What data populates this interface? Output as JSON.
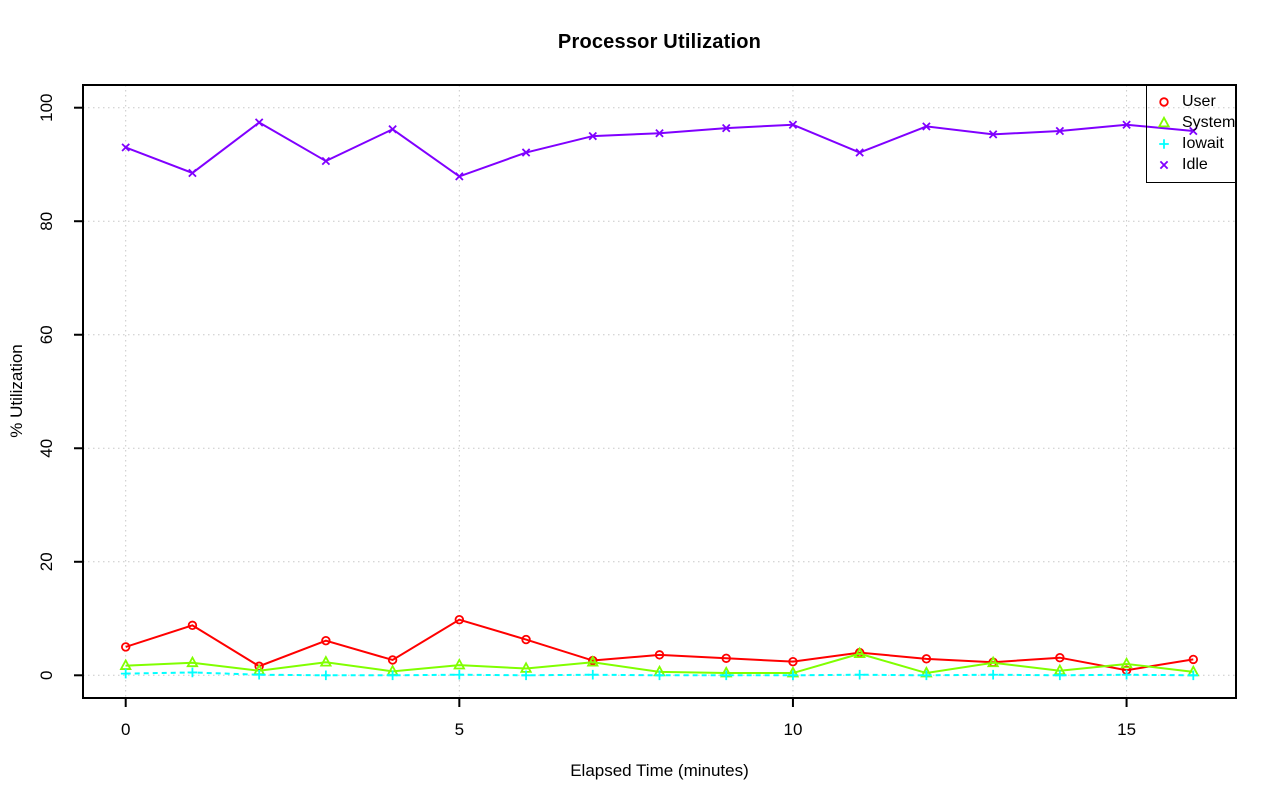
{
  "chart_data": {
    "type": "line",
    "title": "Processor Utilization",
    "xlabel": "Elapsed Time (minutes)",
    "ylabel": "% Utilization",
    "x": [
      0,
      1,
      2,
      3,
      4,
      5,
      6,
      7,
      8,
      9,
      10,
      11,
      12,
      13,
      14,
      15,
      16
    ],
    "xticks": [
      0,
      5,
      10,
      15
    ],
    "yticks": [
      0,
      20,
      40,
      60,
      80,
      100
    ],
    "xlim": [
      0,
      16
    ],
    "ylim": [
      0,
      100
    ],
    "grid": true,
    "grid_style": "dotted",
    "legend_position": "top-right",
    "series": [
      {
        "name": "User",
        "color": "#FF0000",
        "marker": "open-circle",
        "line": "solid",
        "values": [
          5.0,
          8.8,
          1.6,
          6.1,
          2.7,
          9.8,
          6.3,
          2.6,
          3.6,
          3.0,
          2.4,
          4.0,
          2.9,
          2.3,
          3.1,
          0.9,
          2.8
        ]
      },
      {
        "name": "System",
        "color": "#80FF00",
        "marker": "open-triangle",
        "line": "solid",
        "values": [
          1.7,
          2.2,
          0.8,
          2.3,
          0.7,
          1.8,
          1.2,
          2.3,
          0.6,
          0.4,
          0.4,
          3.8,
          0.4,
          2.2,
          0.8,
          2.0,
          0.6
        ]
      },
      {
        "name": "Iowait",
        "color": "#00FFFF",
        "marker": "plus",
        "line": "dashed",
        "values": [
          0.3,
          0.5,
          0.1,
          0.0,
          0.0,
          0.1,
          0.0,
          0.1,
          0.0,
          0.0,
          0.0,
          0.1,
          0.0,
          0.1,
          0.0,
          0.1,
          0.0
        ]
      },
      {
        "name": "Idle",
        "color": "#8000FF",
        "marker": "x",
        "line": "solid",
        "values": [
          93.0,
          88.5,
          97.4,
          90.6,
          96.2,
          87.9,
          92.1,
          95.0,
          95.5,
          96.4,
          97.0,
          92.1,
          96.7,
          95.3,
          95.9,
          97.0,
          95.9
        ]
      }
    ]
  },
  "colors": {
    "background": "#FFFFFF",
    "axis": "#000000",
    "grid": "#C8C8C8",
    "text": "#000000"
  }
}
